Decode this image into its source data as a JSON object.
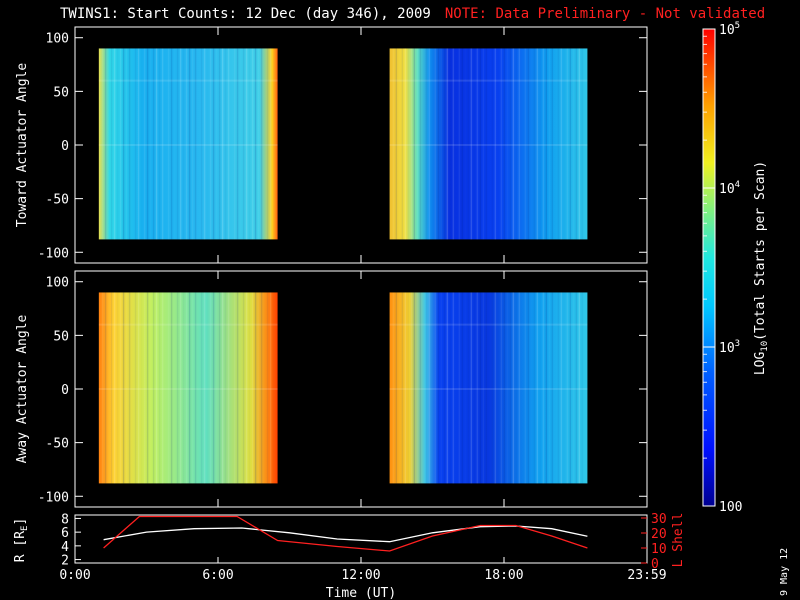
{
  "title": "TWINS1: Start Counts: 12 Dec (day 346), 2009",
  "note": "NOTE: Data Preliminary - Not validated",
  "date_stamp": "9 May 12",
  "chart_data": [
    {
      "type": "heatmap",
      "ylabel": "Toward Actuator Angle",
      "ylim": [
        -110,
        110
      ],
      "yticks": [
        100,
        50,
        0,
        -50,
        -100
      ],
      "data_ranges_hours": [
        [
          1.0,
          8.5
        ],
        [
          13.2,
          21.5
        ]
      ],
      "angle_range": [
        -88,
        90
      ]
    },
    {
      "type": "heatmap",
      "ylabel": "Away Actuator Angle",
      "ylim": [
        -110,
        110
      ],
      "yticks": [
        100,
        50,
        0,
        -50,
        -100
      ],
      "data_ranges_hours": [
        [
          1.0,
          8.5
        ],
        [
          13.2,
          21.5
        ]
      ],
      "angle_range": [
        -88,
        90
      ]
    },
    {
      "type": "line",
      "xlabel": "Time (UT)",
      "xticks": [
        "0:00",
        "6:00",
        "12:00",
        "18:00",
        "23:59"
      ],
      "xtick_hours": [
        0,
        6,
        12,
        18,
        24
      ],
      "left_axis": {
        "label": "R [R",
        "label_sub": "E",
        "label_end": "]",
        "ticks": [
          2,
          4,
          6,
          8
        ],
        "ylim": [
          1.5,
          8.5
        ]
      },
      "right_axis": {
        "label": "L Shell",
        "ticks": [
          0,
          10,
          20,
          30
        ],
        "ylim": [
          0,
          32
        ],
        "color": "#ff2020"
      },
      "series": [
        {
          "axis": "left",
          "color": "#ffffff",
          "x": [
            1.2,
            3,
            5,
            7,
            9,
            11,
            13.2,
            15,
            17,
            18.5,
            20,
            21.5
          ],
          "y": [
            4.9,
            6.0,
            6.5,
            6.6,
            5.9,
            5.0,
            4.6,
            5.9,
            6.8,
            6.9,
            6.5,
            5.4
          ]
        },
        {
          "axis": "right",
          "color": "#ff2020",
          "x": [
            1.2,
            2.7,
            6.8,
            8.5,
            11,
            13.2,
            15,
            17,
            18.5,
            20,
            21.5
          ],
          "y": [
            10,
            31,
            31,
            15,
            11,
            8,
            18,
            25,
            25,
            18,
            10
          ]
        }
      ]
    }
  ],
  "colorbar": {
    "label": "LOG",
    "label_sub": "10",
    "label_rest": "(Total Starts per Scan)",
    "ticks": [
      {
        "base": "10",
        "exp": "5",
        "value": 100000
      },
      {
        "base": "10",
        "exp": "4",
        "value": 10000
      },
      {
        "base": "10",
        "exp": "3",
        "value": 1000
      },
      {
        "base": "100",
        "exp": "",
        "value": 100
      }
    ],
    "range": [
      100,
      100000
    ]
  },
  "colors": {
    "frame": "#ffffff",
    "note": "#ff2020",
    "background": "#000000"
  }
}
